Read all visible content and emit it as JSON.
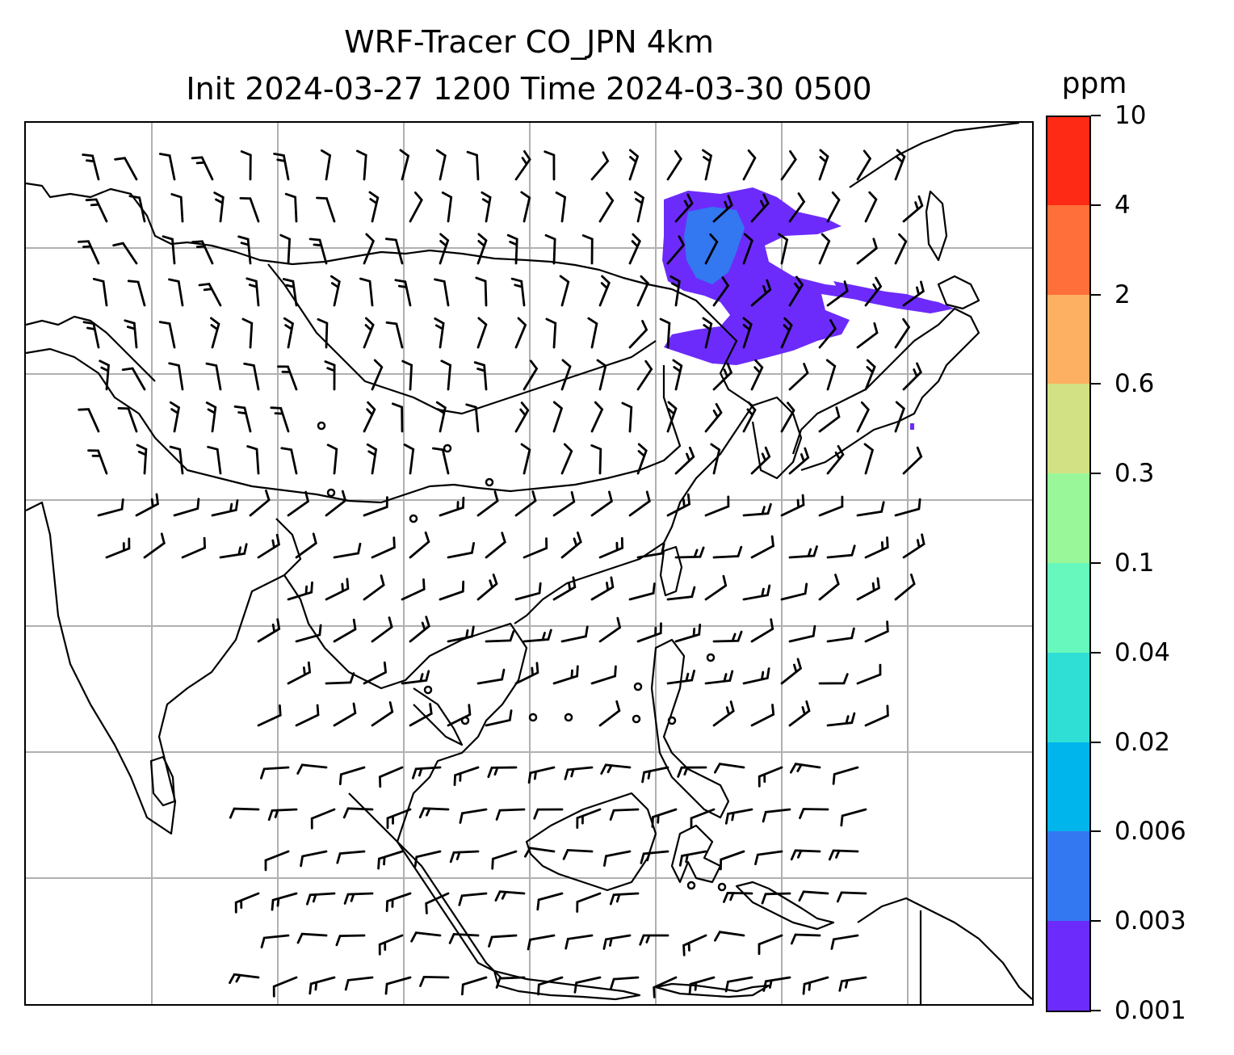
{
  "title": {
    "line1": "WRF-Tracer CO_JPN 4km",
    "line2": "Init 2024-03-27 1200 Time 2024-03-30 0500"
  },
  "colorbar": {
    "unit": "ppm",
    "levels": [
      {
        "label": "10",
        "color": "#ff2a16"
      },
      {
        "label": "4",
        "color": "#ff6f3a"
      },
      {
        "label": "2",
        "color": "#fdb061"
      },
      {
        "label": "0.6",
        "color": "#d1e183"
      },
      {
        "label": "0.3",
        "color": "#9af799"
      },
      {
        "label": "0.1",
        "color": "#67f8bd"
      },
      {
        "label": "0.04",
        "color": "#2fdfd6"
      },
      {
        "label": "0.02",
        "color": "#00b4ec"
      },
      {
        "label": "0.006",
        "color": "#3377f1"
      },
      {
        "label": "0.003",
        "color": "#6c2bfa"
      },
      {
        "label": "0.001",
        "color": ""
      }
    ]
  },
  "map": {
    "gridlines": true,
    "gridline_color": "#b0b0b0",
    "coastline_color": "#000000",
    "plume_colors": [
      "#6c2bfa",
      "#3377f1"
    ],
    "wind_barb_color": "#000000"
  }
}
